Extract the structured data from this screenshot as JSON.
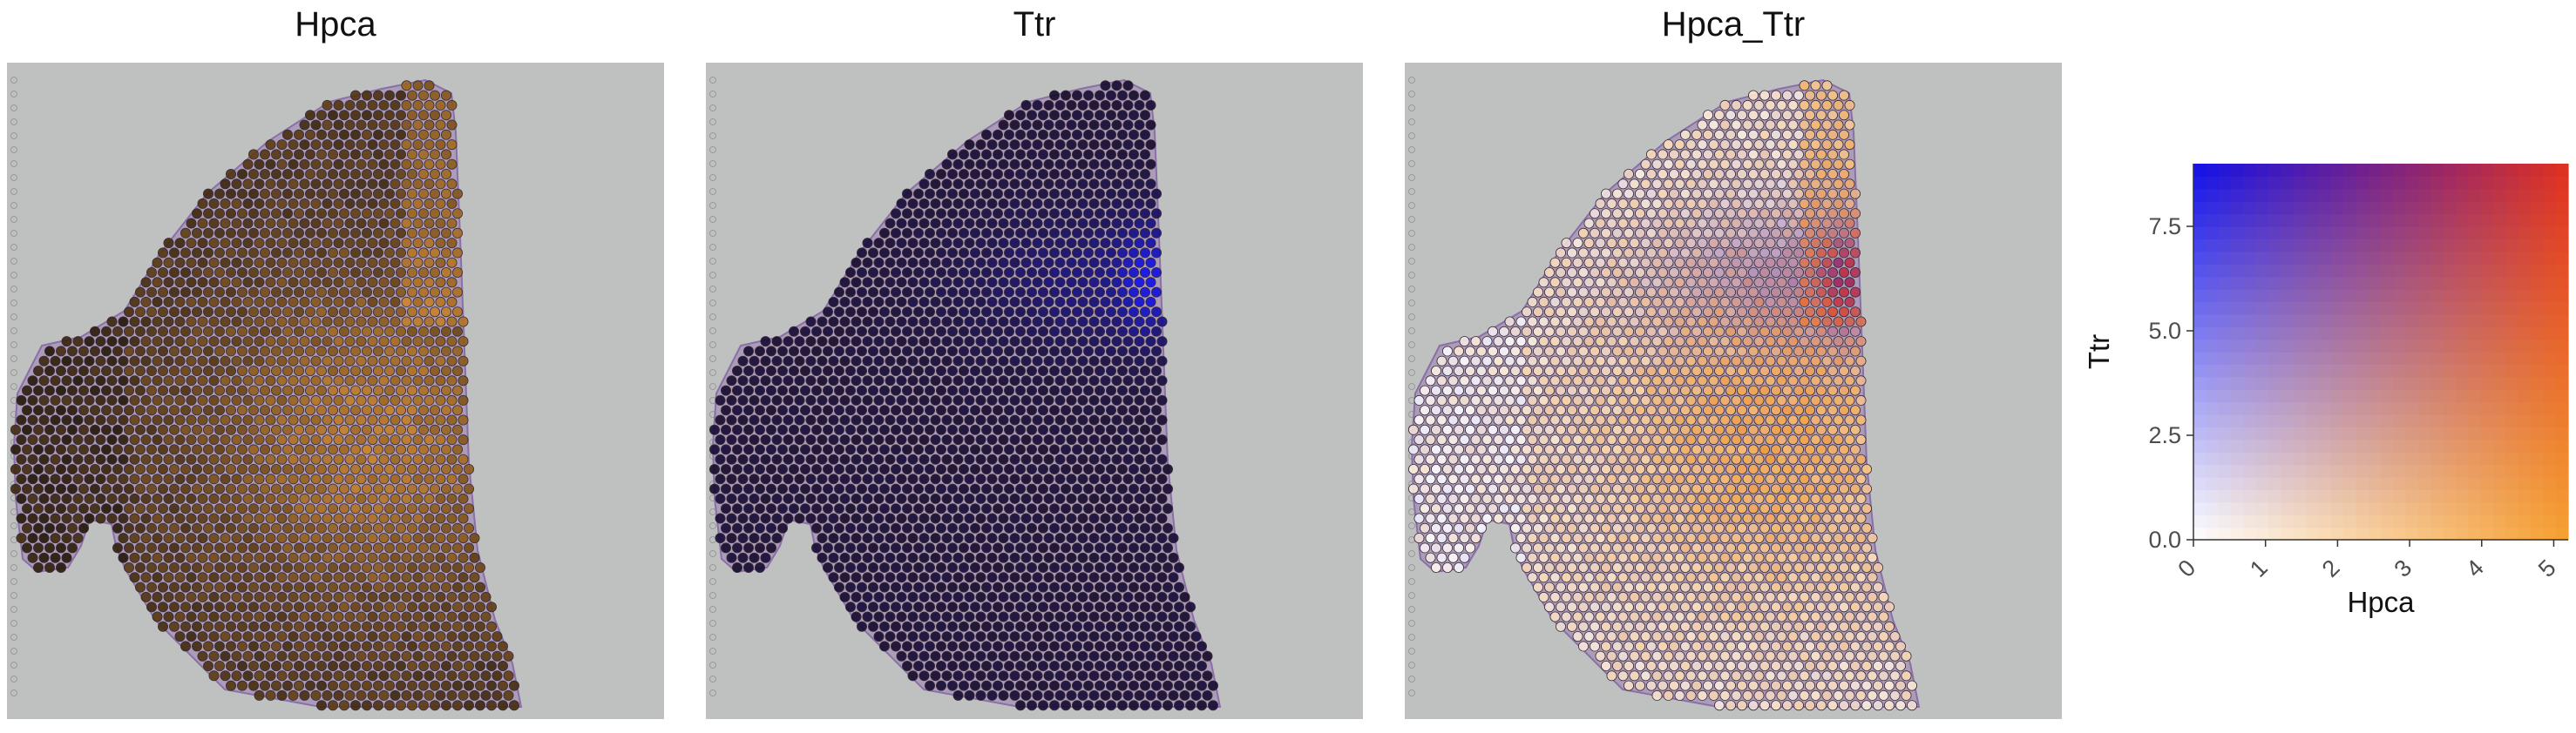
{
  "panels": [
    {
      "title": "Hpca",
      "mode": "hpca"
    },
    {
      "title": "Ttr",
      "mode": "ttr"
    },
    {
      "title": "Hpca_Ttr",
      "mode": "blend"
    }
  ],
  "chart_data": {
    "type": "heatmap",
    "description_type": "spatial feature expression blend",
    "features": [
      "Hpca",
      "Ttr"
    ],
    "colors": {
      "low": "#ffffff",
      "hpca_high": "#f5a030",
      "ttr_high": "#1010e8",
      "both_high": "#e03020",
      "hpca_panel_low": "#000000",
      "ttr_panel_low": "#000000",
      "tissue_stain": "#9b7fb0",
      "background_slide": "#bfc1c0"
    },
    "legend": {
      "xlabel": "Hpca",
      "ylabel": "Ttr",
      "xlim": [
        0,
        5.2
      ],
      "ylim": [
        0,
        9
      ],
      "xticks": [
        "0",
        "1",
        "2",
        "3",
        "4",
        "5"
      ],
      "yticks": [
        "0.0",
        "2.5",
        "5.0",
        "7.5"
      ],
      "xtick_values": [
        0,
        1,
        2,
        3,
        4,
        5
      ],
      "ytick_values": [
        0,
        2.5,
        5,
        7.5
      ]
    }
  }
}
